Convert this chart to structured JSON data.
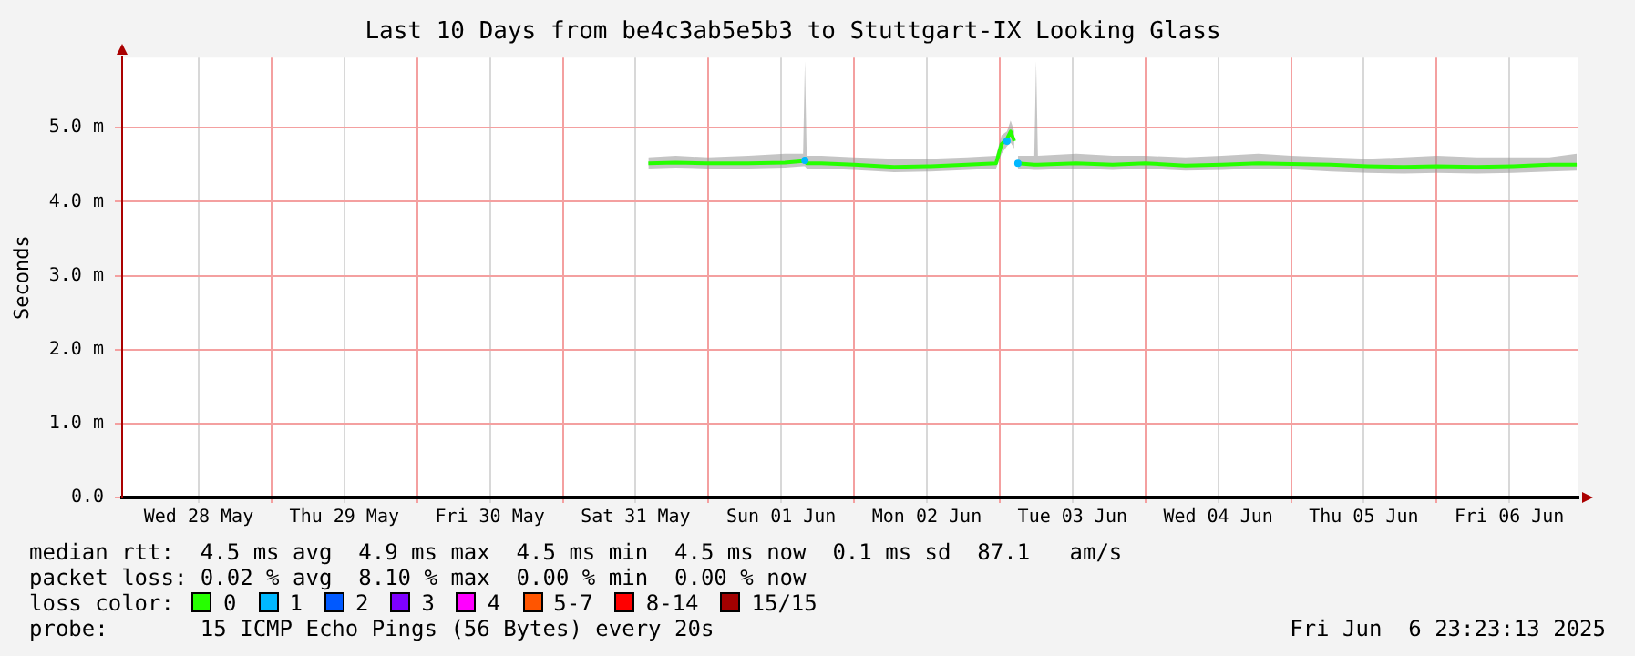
{
  "chart_data": {
    "type": "line",
    "title": "Last 10 Days from be4c3ab5e5b3 to Stuttgart-IX Looking Glass",
    "ylabel": "Seconds",
    "xlim": [
      "2025-05-27T23:23",
      "2025-06-06T23:23"
    ],
    "xticks": [
      {
        "value": "2025-05-28T12:00",
        "label": "Wed 28 May"
      },
      {
        "value": "2025-05-29T00:00",
        "label": null
      },
      {
        "value": "2025-05-29T12:00",
        "label": "Thu 29 May"
      },
      {
        "value": "2025-05-30T00:00",
        "label": null
      },
      {
        "value": "2025-05-30T12:00",
        "label": "Fri 30 May"
      },
      {
        "value": "2025-05-31T00:00",
        "label": null
      },
      {
        "value": "2025-05-31T12:00",
        "label": "Sat 31 May"
      },
      {
        "value": "2025-06-01T00:00",
        "label": null
      },
      {
        "value": "2025-06-01T12:00",
        "label": "Sun 01 Jun"
      },
      {
        "value": "2025-06-02T00:00",
        "label": null
      },
      {
        "value": "2025-06-02T12:00",
        "label": "Mon 02 Jun"
      },
      {
        "value": "2025-06-03T00:00",
        "label": null
      },
      {
        "value": "2025-06-03T12:00",
        "label": "Tue 03 Jun"
      },
      {
        "value": "2025-06-04T00:00",
        "label": null
      },
      {
        "value": "2025-06-04T12:00",
        "label": "Wed 04 Jun"
      },
      {
        "value": "2025-06-05T00:00",
        "label": null
      },
      {
        "value": "2025-06-05T12:00",
        "label": "Thu 05 Jun"
      },
      {
        "value": "2025-06-06T00:00",
        "label": null
      },
      {
        "value": "2025-06-06T12:00",
        "label": "Fri 06 Jun"
      }
    ],
    "ylim": [
      0,
      5.95
    ],
    "yticks": [
      {
        "value": 0,
        "label": "0.0"
      },
      {
        "value": 1,
        "label": "1.0 m"
      },
      {
        "value": 2,
        "label": "2.0 m"
      },
      {
        "value": 3,
        "label": "3.0 m"
      },
      {
        "value": 4,
        "label": "4.0 m"
      },
      {
        "value": 5,
        "label": "5.0 m"
      }
    ],
    "grid": true,
    "legend": "bottom",
    "legend_title": "loss color:",
    "x": [
      "2025-05-31T14:06",
      "2025-05-31T18:36",
      "2025-06-01T00:00",
      "2025-06-01T06:36",
      "2025-06-01T12:36",
      "2025-06-01T15:36",
      "2025-06-01T15:54",
      "2025-06-01T16:12",
      "2025-06-01T18:36",
      "2025-06-02T00:00",
      "2025-06-02T06:36",
      "2025-06-02T12:36",
      "2025-06-02T18:36",
      "2025-06-02T23:24",
      "2025-06-03T00:18",
      "2025-06-03T01:12",
      "2025-06-03T01:48",
      "2025-06-03T02:24",
      "2025-06-03T02:42",
      "2025-06-03T03:00",
      "2025-06-03T05:42",
      "2025-06-03T06:00",
      "2025-06-03T06:18",
      "2025-06-03T12:36",
      "2025-06-03T18:36",
      "2025-06-04T00:00",
      "2025-06-04T06:36",
      "2025-06-04T12:36",
      "2025-06-04T18:36",
      "2025-06-05T00:00",
      "2025-06-05T06:36",
      "2025-06-05T12:36",
      "2025-06-05T18:36",
      "2025-06-06T00:00",
      "2025-06-06T06:36",
      "2025-06-06T12:36",
      "2025-06-06T18:36",
      "2025-06-06T23:06"
    ],
    "series": [
      {
        "name": "0",
        "type": "line",
        "color": "#26ff00",
        "values": [
          4.52,
          4.53,
          4.52,
          4.52,
          4.53,
          4.55,
          4.58,
          4.52,
          4.52,
          4.5,
          4.47,
          4.48,
          4.5,
          4.52,
          4.78,
          4.85,
          4.95,
          4.82,
          null,
          4.52,
          4.5,
          4.5,
          4.5,
          4.52,
          4.5,
          4.52,
          4.49,
          4.5,
          4.52,
          4.51,
          4.5,
          4.48,
          4.47,
          4.48,
          4.47,
          4.48,
          4.5,
          4.5
        ],
        "lower": [
          4.45,
          4.46,
          4.45,
          4.45,
          4.46,
          4.48,
          4.48,
          4.45,
          4.45,
          4.43,
          4.4,
          4.41,
          4.43,
          4.45,
          4.65,
          4.75,
          4.8,
          4.72,
          null,
          4.45,
          4.43,
          4.43,
          4.43,
          4.45,
          4.43,
          4.45,
          4.42,
          4.43,
          4.45,
          4.44,
          4.41,
          4.39,
          4.38,
          4.39,
          4.38,
          4.39,
          4.41,
          4.42
        ],
        "upper": [
          4.6,
          4.62,
          4.6,
          4.62,
          4.65,
          4.65,
          5.9,
          4.62,
          4.62,
          4.6,
          4.58,
          4.58,
          4.6,
          4.62,
          4.9,
          4.95,
          5.1,
          4.95,
          null,
          4.62,
          4.62,
          5.9,
          4.62,
          4.65,
          4.62,
          4.62,
          4.6,
          4.62,
          4.65,
          4.62,
          4.6,
          4.58,
          4.6,
          4.62,
          4.6,
          4.6,
          4.6,
          4.65
        ]
      },
      {
        "name": "1",
        "type": "scatter",
        "color": "#00b8ff",
        "x": [
          "2025-06-01T15:54",
          "2025-06-03T01:12",
          "2025-06-03T03:00"
        ],
        "values": [
          4.56,
          4.82,
          4.52
        ]
      },
      {
        "name": "2",
        "type": "line",
        "color": "#0059ff",
        "values": [
          null,
          null,
          null,
          null,
          null,
          null,
          null,
          null,
          null,
          null,
          null,
          null,
          null,
          null,
          null,
          null,
          null,
          null,
          null,
          null,
          null,
          null,
          null,
          null,
          null,
          null,
          null,
          null,
          null,
          null,
          null,
          null,
          null,
          null,
          null,
          null,
          null,
          null
        ]
      },
      {
        "name": "3",
        "type": "line",
        "color": "#7e00ff",
        "values": [
          null,
          null,
          null,
          null,
          null,
          null,
          null,
          null,
          null,
          null,
          null,
          null,
          null,
          null,
          null,
          null,
          null,
          null,
          null,
          null,
          null,
          null,
          null,
          null,
          null,
          null,
          null,
          null,
          null,
          null,
          null,
          null,
          null,
          null,
          null,
          null,
          null,
          null
        ]
      },
      {
        "name": "4",
        "type": "line",
        "color": "#ff00ff",
        "values": [
          null,
          null,
          null,
          null,
          null,
          null,
          null,
          null,
          null,
          null,
          null,
          null,
          null,
          null,
          null,
          null,
          null,
          null,
          null,
          null,
          null,
          null,
          null,
          null,
          null,
          null,
          null,
          null,
          null,
          null,
          null,
          null,
          null,
          null,
          null,
          null,
          null,
          null
        ]
      },
      {
        "name": "5-7",
        "type": "line",
        "color": "#ff5500",
        "values": [
          null,
          null,
          null,
          null,
          null,
          null,
          null,
          null,
          null,
          null,
          null,
          null,
          null,
          null,
          null,
          null,
          null,
          null,
          null,
          null,
          null,
          null,
          null,
          null,
          null,
          null,
          null,
          null,
          null,
          null,
          null,
          null,
          null,
          null,
          null,
          null,
          null,
          null
        ]
      },
      {
        "name": "8-14",
        "type": "line",
        "color": "#ff0000",
        "values": [
          null,
          null,
          null,
          null,
          null,
          null,
          null,
          null,
          null,
          null,
          null,
          null,
          null,
          null,
          null,
          null,
          null,
          null,
          null,
          null,
          null,
          null,
          null,
          null,
          null,
          null,
          null,
          null,
          null,
          null,
          null,
          null,
          null,
          null,
          null,
          null,
          null,
          null
        ]
      },
      {
        "name": "15/15",
        "type": "line",
        "color": "#a10000",
        "values": [
          null,
          null,
          null,
          null,
          null,
          null,
          null,
          null,
          null,
          null,
          null,
          null,
          null,
          null,
          null,
          null,
          null,
          null,
          null,
          null,
          null,
          null,
          null,
          null,
          null,
          null,
          null,
          null,
          null,
          null,
          null,
          null,
          null,
          null,
          null,
          null,
          null,
          null
        ]
      }
    ],
    "annotations": [
      "median rtt:  4.5 ms avg  4.9 ms max  4.5 ms min  4.5 ms now  0.1 ms sd  87.1   am/s",
      "packet loss: 0.02 % avg  8.10 % max  0.00 % min  0.00 % now",
      "probe:       15 ICMP Echo Pings (56 Bytes) every 20s",
      "Fri Jun  6 23:23:13 2025"
    ]
  }
}
